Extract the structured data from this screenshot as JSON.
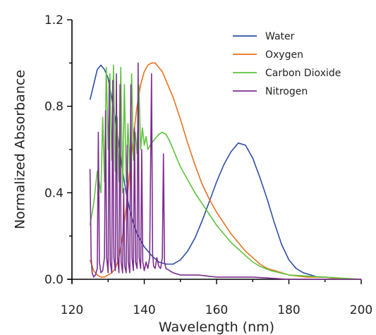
{
  "chart_data": {
    "type": "line",
    "xlabel": "Wavelength (nm)",
    "ylabel": "Normalized Absorbance",
    "xlim": [
      120,
      200
    ],
    "ylim": [
      0,
      1.2
    ],
    "xticks": [
      120,
      140,
      160,
      180,
      200
    ],
    "yticks": [
      0.0,
      0.4,
      0.8,
      1.2
    ],
    "ytick_labels": [
      "0.0",
      "0.4",
      "0.8",
      "1.2"
    ],
    "legend_position": "top-right",
    "grid": false,
    "series": [
      {
        "name": "Water",
        "color": "#2e4fa3",
        "x": [
          125,
          126,
          127,
          128,
          129,
          130,
          131,
          132,
          133,
          134,
          135,
          136,
          137,
          138,
          140,
          142,
          144,
          146,
          148,
          150,
          152,
          154,
          156,
          158,
          160,
          162,
          164,
          166,
          168,
          170,
          172,
          174,
          176,
          178,
          180,
          182,
          184,
          186,
          188,
          190,
          195,
          200
        ],
        "y": [
          0.83,
          0.9,
          0.97,
          0.99,
          0.97,
          0.93,
          0.84,
          0.74,
          0.62,
          0.5,
          0.4,
          0.32,
          0.26,
          0.21,
          0.15,
          0.11,
          0.08,
          0.07,
          0.07,
          0.09,
          0.13,
          0.19,
          0.27,
          0.36,
          0.45,
          0.53,
          0.59,
          0.63,
          0.62,
          0.56,
          0.47,
          0.37,
          0.26,
          0.16,
          0.09,
          0.05,
          0.03,
          0.02,
          0.01,
          0.01,
          0.0,
          0.0
        ]
      },
      {
        "name": "Oxygen",
        "color": "#e8711f",
        "x": [
          125,
          126,
          127,
          128,
          129,
          130,
          131,
          132,
          133,
          134,
          135,
          136,
          137,
          138,
          139,
          140,
          141,
          142,
          143,
          144,
          145,
          146,
          148,
          150,
          152,
          154,
          156,
          158,
          160,
          162,
          164,
          166,
          168,
          170,
          172,
          174,
          176,
          178,
          180,
          185,
          190,
          195,
          200
        ],
        "y": [
          0.09,
          0.04,
          0.02,
          0.01,
          0.01,
          0.02,
          0.03,
          0.05,
          0.1,
          0.2,
          0.33,
          0.5,
          0.66,
          0.8,
          0.9,
          0.96,
          0.99,
          1.0,
          1.0,
          0.98,
          0.96,
          0.92,
          0.84,
          0.74,
          0.63,
          0.53,
          0.44,
          0.37,
          0.31,
          0.26,
          0.21,
          0.17,
          0.13,
          0.1,
          0.07,
          0.05,
          0.04,
          0.03,
          0.02,
          0.01,
          0.01,
          0.0,
          0.0
        ]
      },
      {
        "name": "Carbon Dioxide",
        "color": "#5dc33c",
        "x": [
          125,
          126,
          127,
          128,
          128.5,
          129,
          129.5,
          130,
          130.5,
          131,
          131.5,
          132,
          132.5,
          133,
          133.5,
          134,
          134.5,
          135,
          135.5,
          136,
          136.5,
          137,
          137.5,
          138,
          138.5,
          139,
          139.5,
          140,
          140.5,
          141,
          142,
          143,
          144,
          145,
          146,
          147,
          148,
          149,
          150,
          152,
          154,
          156,
          158,
          160,
          162,
          164,
          166,
          168,
          170,
          172,
          175,
          180,
          190,
          200
        ],
        "y": [
          0.25,
          0.35,
          0.5,
          0.4,
          0.75,
          0.45,
          0.98,
          0.6,
          0.95,
          0.55,
          0.99,
          0.5,
          0.75,
          0.45,
          0.98,
          0.4,
          0.9,
          0.45,
          0.72,
          0.5,
          0.95,
          0.55,
          0.68,
          0.58,
          0.9,
          0.6,
          0.7,
          0.62,
          0.66,
          0.6,
          0.63,
          0.65,
          0.67,
          0.68,
          0.67,
          0.64,
          0.6,
          0.56,
          0.52,
          0.46,
          0.4,
          0.35,
          0.3,
          0.25,
          0.21,
          0.17,
          0.14,
          0.11,
          0.08,
          0.06,
          0.04,
          0.02,
          0.01,
          0.0
        ]
      },
      {
        "name": "Nitrogen",
        "color": "#7b2d8e",
        "x": [
          125,
          125.3,
          125.6,
          126,
          126.5,
          127,
          127.3,
          127.6,
          128,
          128.5,
          129,
          129.3,
          129.6,
          130,
          130.3,
          130.6,
          131,
          131.3,
          131.6,
          132,
          132.3,
          132.6,
          133,
          133.3,
          133.6,
          134,
          134.3,
          134.6,
          135,
          135.3,
          135.6,
          136,
          136.3,
          136.6,
          137,
          137.3,
          137.6,
          138,
          138.3,
          138.6,
          139,
          139.3,
          139.6,
          140,
          140.5,
          141,
          141.5,
          142,
          142.3,
          142.6,
          143,
          143.5,
          144,
          144.5,
          145,
          145.3,
          145.6,
          146,
          148,
          150,
          155,
          160,
          170,
          180,
          190,
          200
        ],
        "y": [
          0.51,
          0.1,
          0.03,
          0.01,
          0.02,
          0.05,
          0.68,
          0.08,
          0.03,
          0.04,
          0.1,
          0.78,
          0.1,
          0.03,
          0.92,
          0.08,
          0.03,
          0.92,
          0.1,
          0.04,
          0.95,
          0.1,
          0.03,
          0.9,
          0.08,
          0.03,
          0.42,
          0.06,
          0.03,
          0.62,
          0.08,
          0.03,
          0.9,
          0.1,
          0.04,
          0.7,
          0.08,
          0.05,
          1.0,
          0.1,
          0.05,
          0.6,
          0.08,
          0.04,
          0.08,
          0.05,
          0.1,
          0.95,
          0.12,
          0.06,
          0.05,
          0.1,
          0.06,
          0.05,
          0.1,
          0.58,
          0.08,
          0.05,
          0.03,
          0.02,
          0.02,
          0.01,
          0.01,
          0.0,
          0.0,
          0.0
        ]
      }
    ]
  }
}
